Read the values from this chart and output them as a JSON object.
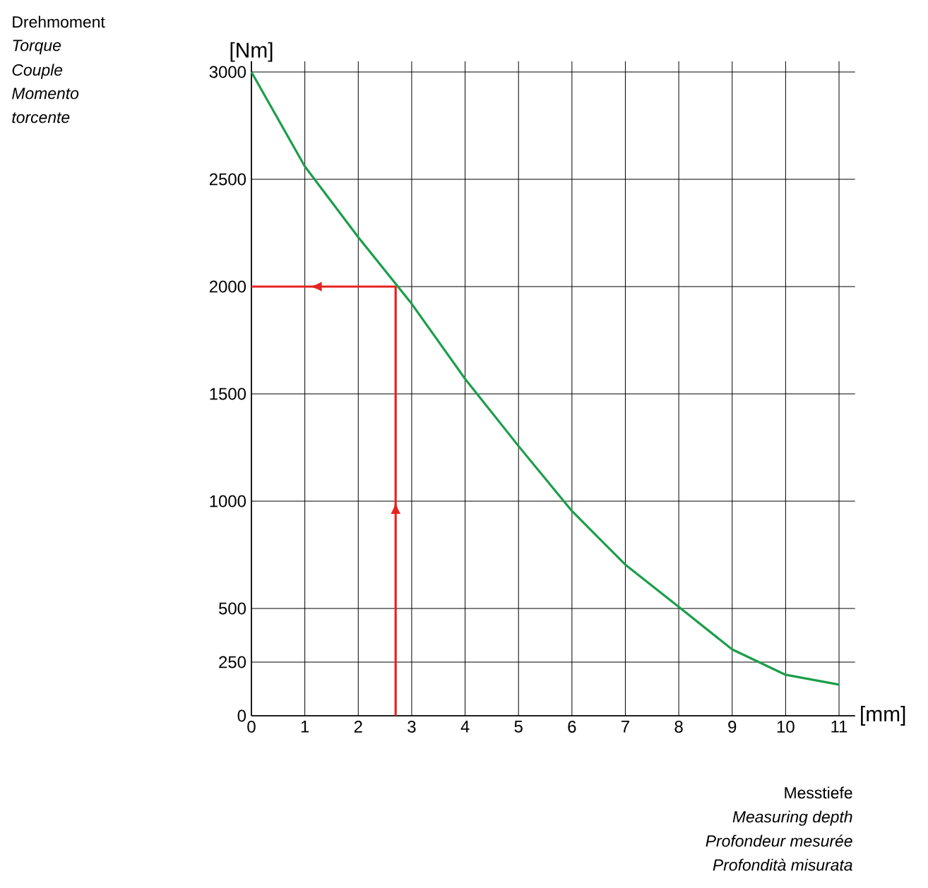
{
  "chart_data": {
    "type": "line",
    "ylabel": "[Nm]",
    "xlabel": "[mm]",
    "annotations": [
      "Drehmoment",
      "Torque",
      "Couple",
      "Momento torcente",
      "Messtiefe",
      "Measuring depth",
      "Profondeur mesurée",
      "Profondità misurata"
    ],
    "x": [
      0,
      1,
      2,
      3,
      4,
      5,
      6,
      7,
      8,
      9,
      10,
      11
    ],
    "series": [
      {
        "color": "#1a9e4a",
        "values": [
          3000,
          2560,
          2230,
          1920,
          1570,
          1257,
          954,
          704,
          507,
          309,
          191,
          145
        ]
      }
    ],
    "xlim": [
      0,
      11.3
    ],
    "ylim": [
      0,
      3050
    ],
    "xticks": [
      0,
      1,
      2,
      3,
      4,
      5,
      6,
      7,
      8,
      9,
      10,
      11
    ],
    "yticks": [
      0,
      250,
      500,
      1000,
      1500,
      2000,
      2500,
      3000
    ],
    "grid": true,
    "ref_lines": [
      {
        "axis": "x",
        "value": 2.7,
        "color": "#e52421"
      },
      {
        "axis": "y",
        "value": 2000,
        "color": "#e52421"
      }
    ]
  }
}
